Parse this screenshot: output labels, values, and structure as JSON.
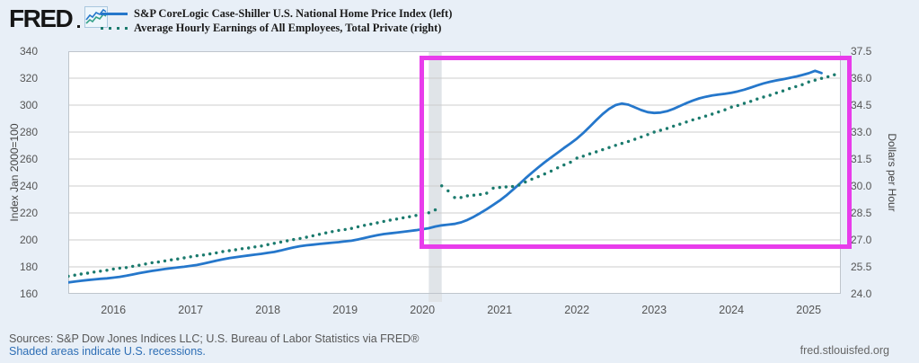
{
  "brand": {
    "logo_text": "FRED",
    "icon": "fred-sparkline-icon"
  },
  "legend": {
    "items": [
      {
        "label": "S&P CoreLogic Case-Shiller U.S. National Home Price Index (left)",
        "color": "#2577cb",
        "style": "solid"
      },
      {
        "label": "Average Hourly Earnings of All Employees, Total Private (right)",
        "color": "#1a7a6d",
        "style": "dotted"
      }
    ]
  },
  "footer": {
    "sources": "Sources: S&P Dow Jones Indices LLC; U.S. Bureau of Labor Statistics via FRED®",
    "recession_note": "Shaded areas indicate U.S. recessions.",
    "site": "fred.stlouisfed.org"
  },
  "chart_data": {
    "type": "line",
    "title": "",
    "frequency": "monthly",
    "x_start": "2015-06",
    "x_end": "2025-06",
    "x_ticks": [
      2016,
      2017,
      2018,
      2019,
      2020,
      2021,
      2022,
      2023,
      2024,
      2025
    ],
    "grid": true,
    "legend_position": "top-left",
    "left_axis": {
      "title": "Index Jan 2000=100",
      "min": 160,
      "max": 340,
      "ticks": [
        340,
        320,
        300,
        280,
        260,
        240,
        220,
        200,
        180,
        160
      ]
    },
    "right_axis": {
      "title": "Dollars per Hour",
      "min": 24.0,
      "max": 37.5,
      "ticks": [
        37.5,
        36.0,
        34.5,
        33.0,
        31.5,
        30.0,
        28.5,
        27.0,
        25.5,
        24.0
      ]
    },
    "recession_band": {
      "from": "2020-02",
      "to": "2020-04",
      "color": "#e0e4e8"
    },
    "highlight_box": {
      "from": "2020-01",
      "to": "2025-06",
      "top_left_axis_value": 334.5,
      "bottom_left_axis_value": 201.5,
      "color": "#e83ceb"
    },
    "series": [
      {
        "name": "S&P CoreLogic Case-Shiller U.S. National Home Price Index",
        "axis": "left",
        "color": "#2577cb",
        "style": "solid",
        "start": "2015-06",
        "values": [
          168.5,
          169.1,
          169.7,
          170.2,
          170.7,
          171.1,
          171.5,
          172.0,
          172.6,
          173.4,
          174.3,
          175.3,
          176.2,
          177.0,
          177.7,
          178.4,
          179.0,
          179.6,
          180.1,
          180.7,
          181.4,
          182.4,
          183.5,
          184.6,
          185.6,
          186.5,
          187.2,
          187.9,
          188.5,
          189.1,
          189.7,
          190.4,
          191.1,
          192.1,
          193.3,
          194.4,
          195.3,
          196.0,
          196.5,
          197.0,
          197.5,
          197.9,
          198.3,
          198.9,
          199.4,
          200.3,
          201.4,
          202.5,
          203.5,
          204.3,
          204.9,
          205.4,
          206.0,
          206.6,
          207.2,
          207.9,
          208.7,
          209.9,
          210.8,
          211.3,
          211.9,
          213.0,
          214.8,
          217.2,
          219.9,
          222.8,
          225.9,
          229.2,
          232.8,
          236.9,
          241.2,
          245.6,
          249.8,
          253.8,
          257.6,
          261.2,
          264.7,
          268.2,
          271.6,
          275.2,
          279.3,
          284.0,
          288.8,
          293.3,
          297.2,
          300.0,
          301.2,
          300.3,
          298.3,
          296.3,
          294.8,
          294.2,
          294.5,
          295.5,
          297.2,
          299.3,
          301.5,
          303.4,
          305.0,
          306.2,
          307.1,
          307.8,
          308.4,
          309.2,
          310.2,
          311.5,
          313.0,
          314.6,
          316.1,
          317.3,
          318.3,
          319.2,
          320.1,
          321.1,
          322.3,
          323.7,
          325.5,
          323.8
        ]
      },
      {
        "name": "Average Hourly Earnings of All Employees, Total Private",
        "axis": "right",
        "color": "#1a7a6d",
        "style": "dotted",
        "start": "2015-06",
        "values": [
          24.98,
          25.04,
          25.1,
          25.15,
          25.21,
          25.26,
          25.31,
          25.38,
          25.43,
          25.46,
          25.53,
          25.59,
          25.66,
          25.73,
          25.77,
          25.83,
          25.89,
          25.94,
          26.0,
          26.06,
          26.12,
          26.16,
          26.22,
          26.28,
          26.35,
          26.4,
          26.45,
          26.51,
          26.55,
          26.61,
          26.66,
          26.74,
          26.81,
          26.88,
          26.95,
          27.02,
          27.08,
          27.15,
          27.23,
          27.31,
          27.39,
          27.46,
          27.53,
          27.58,
          27.64,
          27.73,
          27.81,
          27.88,
          27.95,
          28.03,
          28.1,
          28.16,
          28.23,
          28.29,
          28.36,
          28.43,
          28.51,
          28.67,
          30.01,
          29.73,
          29.36,
          29.36,
          29.45,
          29.49,
          29.53,
          29.6,
          29.88,
          29.92,
          29.95,
          29.97,
          30.05,
          30.22,
          30.38,
          30.52,
          30.67,
          30.83,
          31.01,
          31.17,
          31.32,
          31.55,
          31.66,
          31.79,
          31.9,
          32.02,
          32.14,
          32.26,
          32.37,
          32.48,
          32.6,
          32.73,
          32.86,
          33.0,
          33.1,
          33.2,
          33.33,
          33.44,
          33.56,
          33.68,
          33.78,
          33.89,
          34.0,
          34.12,
          34.24,
          34.39,
          34.48,
          34.6,
          34.71,
          34.84,
          34.95,
          35.05,
          35.18,
          35.29,
          35.42,
          35.53,
          35.64,
          35.79,
          35.89,
          35.99,
          36.08,
          36.19
        ]
      }
    ]
  }
}
